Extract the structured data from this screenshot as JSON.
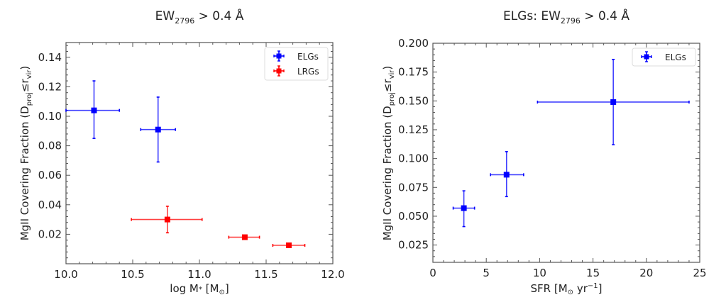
{
  "chart_data": [
    {
      "type": "scatter",
      "title": {
        "main": "EW",
        "sub": "2796",
        "rest": " > 0.4 Å"
      },
      "xlabel": {
        "main": "log M",
        "sub": "*",
        "rest": " [M",
        "sun": "⊙",
        "close": "]"
      },
      "ylabel": {
        "main": "MgII Covering Fraction (D",
        "sub1": "proj",
        "mid": "≤r",
        "sub2": "vir",
        "close": ")"
      },
      "xlim": [
        10.0,
        12.0
      ],
      "ylim": [
        0.0,
        0.15
      ],
      "xticks": [
        10.0,
        10.5,
        11.0,
        11.5,
        12.0
      ],
      "xtick_labels": [
        "10.0",
        "10.5",
        "11.0",
        "11.5",
        "12.0"
      ],
      "yticks": [
        0.02,
        0.04,
        0.06,
        0.08,
        0.1,
        0.12,
        0.14
      ],
      "ytick_labels": [
        "0.02",
        "0.04",
        "0.06",
        "0.08",
        "0.10",
        "0.12",
        "0.14"
      ],
      "legend_position": "top-right",
      "series": [
        {
          "name": "ELGs",
          "color": "#0000ff",
          "points": [
            {
              "x": 10.21,
              "xlo": 10.0,
              "xhi": 10.4,
              "y": 0.104,
              "ylo": 0.085,
              "yhi": 0.124
            },
            {
              "x": 10.69,
              "xlo": 10.56,
              "xhi": 10.82,
              "y": 0.091,
              "ylo": 0.069,
              "yhi": 0.113
            }
          ]
        },
        {
          "name": "LRGs",
          "color": "#ff0000",
          "points": [
            {
              "x": 10.76,
              "xlo": 10.49,
              "xhi": 11.02,
              "y": 0.03,
              "ylo": 0.021,
              "yhi": 0.039
            },
            {
              "x": 11.34,
              "xlo": 11.22,
              "xhi": 11.45,
              "y": 0.018,
              "ylo": 0.017,
              "yhi": 0.019
            },
            {
              "x": 11.67,
              "xlo": 11.55,
              "xhi": 11.79,
              "y": 0.0125,
              "ylo": 0.0115,
              "yhi": 0.0135
            }
          ]
        }
      ]
    },
    {
      "type": "scatter",
      "title": {
        "main": "ELGs: EW",
        "sub": "2796",
        "rest": " > 0.4 Å"
      },
      "xlabel": {
        "main": "SFR [M",
        "sun": "⊙",
        "rest": " yr",
        "sup": "−1",
        "close": "]"
      },
      "ylabel": {
        "main": "MgII Covering Fraction (D",
        "sub1": "proj",
        "mid": "≤r",
        "sub2": "vir",
        "close": ")"
      },
      "xlim": [
        0,
        25
      ],
      "ylim": [
        0.01,
        0.2
      ],
      "xticks": [
        0,
        5,
        10,
        15,
        20,
        25
      ],
      "xtick_labels": [
        "0",
        "5",
        "10",
        "15",
        "20",
        "25"
      ],
      "yticks": [
        0.025,
        0.05,
        0.075,
        0.1,
        0.125,
        0.15,
        0.175,
        0.2
      ],
      "ytick_labels": [
        "0.025",
        "0.050",
        "0.075",
        "0.100",
        "0.125",
        "0.150",
        "0.175",
        "0.200"
      ],
      "legend_position": "top-right",
      "series": [
        {
          "name": "ELGs",
          "color": "#0000ff",
          "points": [
            {
              "x": 2.9,
              "xlo": 1.9,
              "xhi": 3.9,
              "y": 0.057,
              "ylo": 0.041,
              "yhi": 0.072
            },
            {
              "x": 6.9,
              "xlo": 5.4,
              "xhi": 8.5,
              "y": 0.086,
              "ylo": 0.067,
              "yhi": 0.106
            },
            {
              "x": 16.9,
              "xlo": 9.8,
              "xhi": 24.0,
              "y": 0.149,
              "ylo": 0.112,
              "yhi": 0.186
            }
          ]
        }
      ]
    }
  ]
}
